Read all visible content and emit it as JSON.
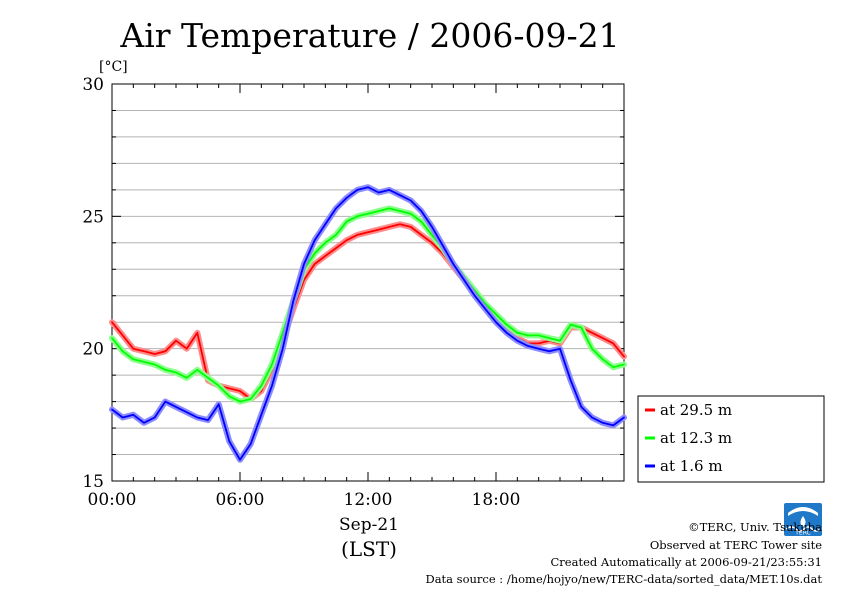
{
  "chart_data": {
    "type": "line",
    "title": "Air Temperature / 2006-09-21",
    "yunit": "[°C]",
    "xlabel_date": "Sep-21",
    "xlabel_tz": "(LST)",
    "ylim": [
      15,
      30
    ],
    "yticks": [
      "15",
      "20",
      "25",
      "30"
    ],
    "xlim": [
      0,
      24
    ],
    "xticks": [
      "00:00",
      "06:00",
      "12:00",
      "18:00"
    ],
    "xtick_hours": [
      0,
      6,
      12,
      18
    ],
    "grid": true,
    "legend_position": "bottom-right-outside",
    "x_hours": [
      0,
      0.5,
      1,
      1.5,
      2,
      2.5,
      3,
      3.5,
      4,
      4.5,
      5,
      5.5,
      6,
      6.5,
      7,
      7.5,
      8,
      8.5,
      9,
      9.5,
      10,
      10.5,
      11,
      11.5,
      12,
      12.5,
      13,
      13.5,
      14,
      14.5,
      15,
      15.5,
      16,
      16.5,
      17,
      17.5,
      18,
      18.5,
      19,
      19.5,
      20,
      20.5,
      21,
      21.5,
      22,
      22.5,
      23,
      23.5,
      24
    ],
    "series": [
      {
        "name": "at 29.5 m",
        "color": "#ff0000",
        "values": [
          21.0,
          20.5,
          20.0,
          19.9,
          19.8,
          19.9,
          20.3,
          20.0,
          20.6,
          18.8,
          18.6,
          18.5,
          18.4,
          18.1,
          18.4,
          19.2,
          20.3,
          21.5,
          22.6,
          23.2,
          23.5,
          23.8,
          24.1,
          24.3,
          24.4,
          24.5,
          24.6,
          24.7,
          24.6,
          24.3,
          24.0,
          23.6,
          23.1,
          22.6,
          22.1,
          21.6,
          21.1,
          20.7,
          20.4,
          20.2,
          20.2,
          20.3,
          20.2,
          20.8,
          20.8,
          20.6,
          20.4,
          20.2,
          19.7
        ]
      },
      {
        "name": "at 12.3 m",
        "color": "#00ff00",
        "values": [
          20.4,
          19.9,
          19.6,
          19.5,
          19.4,
          19.2,
          19.1,
          18.9,
          19.2,
          18.9,
          18.6,
          18.2,
          18.0,
          18.1,
          18.6,
          19.4,
          20.6,
          21.8,
          23.0,
          23.6,
          24.0,
          24.3,
          24.8,
          25.0,
          25.1,
          25.2,
          25.3,
          25.2,
          25.1,
          24.8,
          24.3,
          23.8,
          23.2,
          22.7,
          22.2,
          21.7,
          21.3,
          20.9,
          20.6,
          20.5,
          20.5,
          20.4,
          20.3,
          20.9,
          20.8,
          20.0,
          19.6,
          19.3,
          19.4
        ]
      },
      {
        "name": "at 1.6 m",
        "color": "#0000ff",
        "values": [
          17.7,
          17.4,
          17.5,
          17.2,
          17.4,
          18.0,
          17.8,
          17.6,
          17.4,
          17.3,
          17.9,
          16.5,
          15.8,
          16.4,
          17.5,
          18.6,
          20.0,
          21.8,
          23.2,
          24.1,
          24.7,
          25.3,
          25.7,
          26.0,
          26.1,
          25.9,
          26.0,
          25.8,
          25.6,
          25.2,
          24.6,
          23.9,
          23.2,
          22.6,
          22.0,
          21.5,
          21.0,
          20.6,
          20.3,
          20.1,
          20.0,
          19.9,
          20.0,
          18.8,
          17.8,
          17.4,
          17.2,
          17.1,
          17.4
        ]
      }
    ]
  },
  "credits": {
    "line1": "©TERC, Univ. Tsukuba",
    "line2": "Observed at TERC Tower site",
    "line3": "Created Automatically at 2006-09-21/23:55:31",
    "line4": "Data source : /home/hojyo/new/TERC-data/sorted_data/MET.10s.dat"
  },
  "logo": {
    "text": "TERC",
    "color": "#1f78c8"
  }
}
